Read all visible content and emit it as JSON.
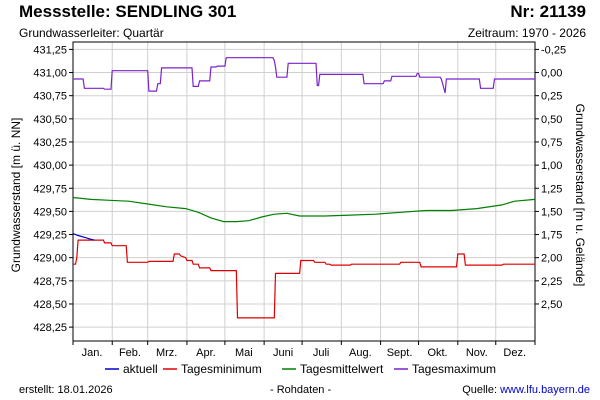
{
  "header": {
    "title": "Messstelle: SENDLING 301",
    "station_number": "Nr: 21139",
    "aquifer": "Grundwasserleiter: Quartär",
    "period": "Zeitraum: 1970 - 2026"
  },
  "footer": {
    "created": "erstellt:  18.01.2026",
    "raw_data": "- Rohdaten -",
    "source_label": "Quelle:",
    "source_link": "www.lfu.bayern.de"
  },
  "chart_data": {
    "type": "line",
    "ylabel": "Grundwasserstand [m ü. NN]",
    "ylabel_right": "Grundwasserstand [m u. Gelände]",
    "ylim": [
      428.1,
      431.33
    ],
    "yticks": [
      "431,25",
      "431,00",
      "430,75",
      "430,50",
      "430,25",
      "430,00",
      "429,75",
      "429,50",
      "429,25",
      "429,00",
      "428,75",
      "428,50",
      "428,25"
    ],
    "ytick_values": [
      431.25,
      431.0,
      430.75,
      430.5,
      430.25,
      430.0,
      429.75,
      429.5,
      429.25,
      429.0,
      428.75,
      428.5,
      428.25
    ],
    "right_ref": 431.0,
    "yticks_right": [
      "-0,25",
      "0,00",
      "0,25",
      "0,50",
      "0,75",
      "1,00",
      "1,25",
      "1,50",
      "1,75",
      "2,00",
      "2,25",
      "2,50"
    ],
    "ytick_right_values": [
      -0.25,
      0.0,
      0.25,
      0.5,
      0.75,
      1.0,
      1.25,
      1.5,
      1.75,
      2.0,
      2.25,
      2.5
    ],
    "xlim": [
      1,
      366
    ],
    "month_labels": [
      "Jan.",
      "Feb.",
      "Mrz.",
      "Apr.",
      "Mai",
      "Juni",
      "Juli",
      "Aug.",
      "Sept.",
      "Okt.",
      "Nov.",
      "Dez."
    ],
    "month_label_days": [
      16,
      46,
      75,
      106,
      136,
      167,
      197,
      228,
      259,
      289,
      320,
      350
    ],
    "month_starts": [
      1,
      32,
      60,
      91,
      121,
      152,
      182,
      213,
      244,
      274,
      305,
      335,
      366
    ],
    "grid": true,
    "legend_position": "bottom",
    "series": [
      {
        "name": "aktuell",
        "color": "#0000cc",
        "x": [
          1,
          5,
          10,
          15,
          18
        ],
        "y": [
          429.26,
          429.24,
          429.22,
          429.2,
          429.19
        ]
      },
      {
        "name": "Tagesminimum",
        "color": "#dd0000",
        "x": [
          1,
          3,
          4,
          5,
          25,
          26,
          31,
          32,
          43,
          44,
          60,
          61,
          80,
          81,
          85,
          86,
          90,
          91,
          95,
          96,
          100,
          101,
          109,
          110,
          114,
          115,
          130,
          131,
          160,
          161,
          180,
          181,
          191,
          192,
          200,
          201,
          204,
          205,
          220,
          221,
          259,
          260,
          275,
          276,
          304,
          305,
          310,
          311,
          323,
          324,
          340,
          341,
          366
        ],
        "y": [
          428.93,
          428.93,
          429.0,
          429.19,
          429.19,
          429.16,
          429.16,
          429.13,
          429.13,
          428.95,
          428.95,
          428.96,
          428.96,
          429.04,
          429.04,
          429.02,
          429.0,
          428.97,
          428.97,
          428.93,
          428.93,
          428.89,
          428.89,
          428.86,
          428.86,
          428.86,
          428.86,
          428.35,
          428.35,
          428.83,
          428.83,
          428.97,
          428.97,
          428.95,
          428.95,
          428.93,
          428.93,
          428.92,
          428.92,
          428.93,
          428.93,
          428.95,
          428.95,
          428.9,
          428.9,
          429.04,
          429.04,
          428.92,
          428.92,
          428.92,
          428.92,
          428.93,
          428.93
        ]
      },
      {
        "name": "Tagesmittelwert",
        "color": "#008000",
        "x": [
          1,
          15,
          30,
          45,
          60,
          75,
          90,
          100,
          110,
          120,
          130,
          140,
          150,
          160,
          170,
          180,
          200,
          220,
          240,
          260,
          280,
          300,
          320,
          340,
          350,
          366
        ],
        "y": [
          429.65,
          429.63,
          429.62,
          429.61,
          429.58,
          429.55,
          429.53,
          429.49,
          429.43,
          429.39,
          429.39,
          429.4,
          429.44,
          429.47,
          429.48,
          429.45,
          429.45,
          429.46,
          429.47,
          429.49,
          429.51,
          429.51,
          429.53,
          429.57,
          429.61,
          429.63
        ]
      },
      {
        "name": "Tagesmaximum",
        "color": "#7b22cc",
        "x": [
          1,
          9,
          10,
          25,
          26,
          31,
          32,
          60,
          61,
          67,
          68,
          70,
          71,
          95,
          96,
          100,
          101,
          109,
          110,
          114,
          115,
          121,
          122,
          159,
          160,
          161,
          162,
          170,
          171,
          193,
          194,
          195,
          196,
          219,
          220,
          230,
          231,
          240,
          241,
          246,
          247,
          252,
          253,
          272,
          273,
          274,
          275,
          291,
          292,
          295,
          296,
          300,
          301,
          303,
          304,
          322,
          323,
          333,
          334,
          366
        ],
        "y": [
          430.93,
          430.93,
          430.83,
          430.83,
          430.82,
          430.82,
          431.02,
          431.02,
          430.8,
          430.8,
          430.88,
          430.88,
          431.05,
          431.05,
          430.85,
          430.85,
          430.91,
          430.91,
          431.06,
          431.06,
          431.07,
          431.07,
          431.16,
          431.16,
          431.13,
          431.06,
          430.95,
          430.95,
          431.1,
          431.1,
          430.86,
          430.86,
          430.98,
          430.98,
          430.98,
          430.98,
          430.88,
          430.88,
          430.88,
          430.88,
          430.91,
          430.91,
          430.96,
          430.96,
          430.99,
          430.99,
          430.95,
          430.95,
          430.93,
          430.78,
          430.93,
          430.93,
          430.93,
          430.93,
          430.93,
          430.93,
          430.83,
          430.83,
          430.93,
          430.93
        ]
      }
    ]
  }
}
